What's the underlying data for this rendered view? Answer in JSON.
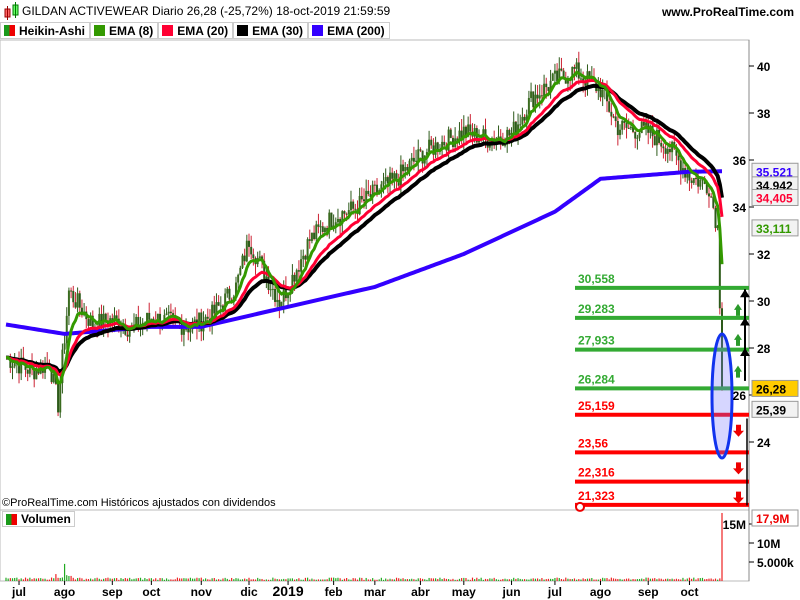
{
  "header": {
    "title": "GILDAN ACTIVEWEAR Diario 26,28 (-25,72%) 18-oct-2019 21:59:59",
    "site": "www.ProRealTime.com"
  },
  "legend": [
    {
      "label": "Heikin-Ashi",
      "color": "#2ca02c"
    },
    {
      "label": "EMA (8)",
      "color": "#339900"
    },
    {
      "label": "EMA (20)",
      "color": "#ff0033"
    },
    {
      "label": "EMA (30)",
      "color": "#000000"
    },
    {
      "label": "EMA (200)",
      "color": "#3300ff"
    }
  ],
  "copyright": "©ProRealTime.com  Históricos ajustados con dividendos",
  "volume_label": "Volumen",
  "chart_data": {
    "type": "candlestick",
    "price_ticks": [
      "40",
      "38",
      "36",
      "34",
      "32",
      "30",
      "28",
      "26",
      "24"
    ],
    "price_tick_values": [
      40,
      38,
      36,
      34,
      32,
      30,
      28,
      26,
      24
    ],
    "ylim": [
      21,
      42
    ],
    "months": [
      "jul",
      "ago",
      "sep",
      "oct",
      "nov",
      "dic",
      "2019",
      "feb",
      "mar",
      "abr",
      "may",
      "jun",
      "jul",
      "ago",
      "sep",
      "oct"
    ],
    "month_day_index": [
      6,
      27,
      49,
      67,
      90,
      112,
      130,
      151,
      170,
      191,
      211,
      233,
      253,
      274,
      296,
      315
    ],
    "total_days": 331,
    "price_path_days": [
      0,
      12,
      20,
      24,
      29,
      40,
      49,
      58,
      67,
      76,
      85,
      95,
      106,
      112,
      118,
      126,
      130,
      140,
      151,
      160,
      170,
      180,
      191,
      200,
      211,
      222,
      233,
      242,
      253,
      262,
      274,
      282,
      296,
      305,
      315,
      324,
      328,
      330
    ],
    "price_path_values": [
      27.6,
      27.0,
      27.4,
      25.6,
      30.4,
      29.0,
      29.2,
      28.8,
      29.3,
      29.1,
      28.9,
      29.4,
      30.6,
      32.6,
      31.4,
      30.0,
      30.6,
      32.6,
      33.6,
      33.9,
      34.6,
      35.2,
      36.2,
      36.7,
      37.2,
      36.9,
      37.1,
      38.6,
      39.4,
      39.8,
      39.0,
      37.4,
      37.2,
      36.6,
      35.3,
      34.9,
      33.1,
      26.28
    ],
    "ema200_days": [
      0,
      27,
      67,
      90,
      118,
      170,
      211,
      253,
      274,
      315,
      330
    ],
    "ema200_values": [
      29.0,
      28.6,
      28.9,
      28.9,
      29.5,
      30.6,
      32.0,
      33.8,
      35.2,
      35.5,
      35.521
    ],
    "last_values": [
      {
        "label": "35,521",
        "value": 35.521,
        "color": "#3300ff"
      },
      {
        "label": "34,942",
        "value": 34.942,
        "color": "#000000"
      },
      {
        "label": "34,405",
        "value": 34.405,
        "color": "#ff0033"
      },
      {
        "label": "33,111",
        "value": 33.111,
        "color": "#339900"
      },
      {
        "label": "26,28",
        "value": 26.28,
        "color": "#000000",
        "bg": "#ffcc00"
      },
      {
        "label": "25,39",
        "value": 25.39,
        "color": "#000000"
      }
    ],
    "levels": [
      {
        "label": "30,558",
        "value": 30.558,
        "color": "#33aa33"
      },
      {
        "label": "29,283",
        "value": 29.283,
        "color": "#33aa33"
      },
      {
        "label": "27,933",
        "value": 27.933,
        "color": "#33aa33"
      },
      {
        "label": "26,284",
        "value": 26.284,
        "color": "#33aa33"
      },
      {
        "label": "25,159",
        "value": 25.159,
        "color": "#ff0000"
      },
      {
        "label": "23,56",
        "value": 23.56,
        "color": "#ff0000"
      },
      {
        "label": "22,316",
        "value": 22.316,
        "color": "#ff0000"
      },
      {
        "label": "21,323",
        "value": 21.323,
        "color": "#ff0000"
      }
    ],
    "volume": {
      "ticks": [
        "15M",
        "10M",
        "5.000k"
      ],
      "tick_values": [
        15,
        10,
        5
      ],
      "last_label": "17,9M",
      "last_value": 17.9,
      "typical": 0.6
    }
  }
}
